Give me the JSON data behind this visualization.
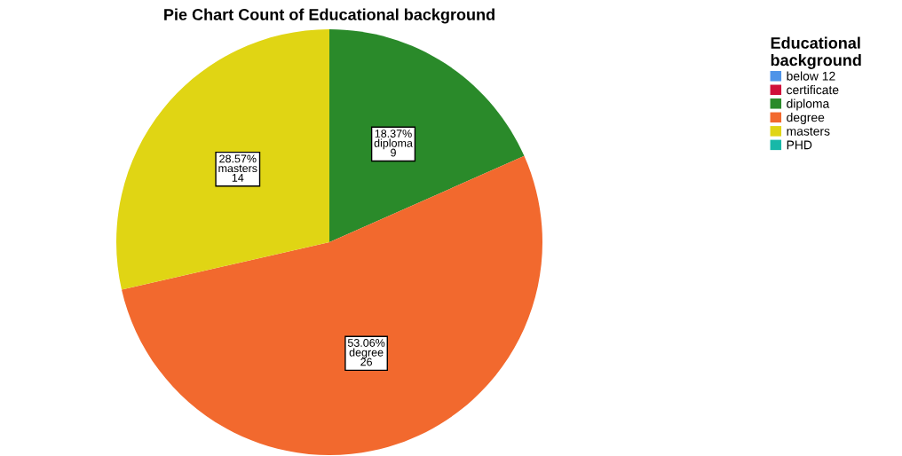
{
  "chart_data": {
    "type": "pie",
    "title": "Pie Chart Count of Educational background",
    "legend_title": "Educational\nbackground",
    "categories": [
      "below 12",
      "certificate",
      "diploma",
      "degree",
      "masters",
      "PHD"
    ],
    "values": [
      0,
      0,
      9,
      26,
      14,
      0
    ],
    "colors": [
      "#4f94e8",
      "#d0103a",
      "#2a8a2a",
      "#f2692e",
      "#e0d514",
      "#17b8a8"
    ],
    "value_labels": [
      null,
      null,
      "18.37%\ndiploma\n9",
      "53.06%\ndegree\n26",
      "28.57%\nmasters\n14",
      null
    ],
    "legend": "top right"
  }
}
